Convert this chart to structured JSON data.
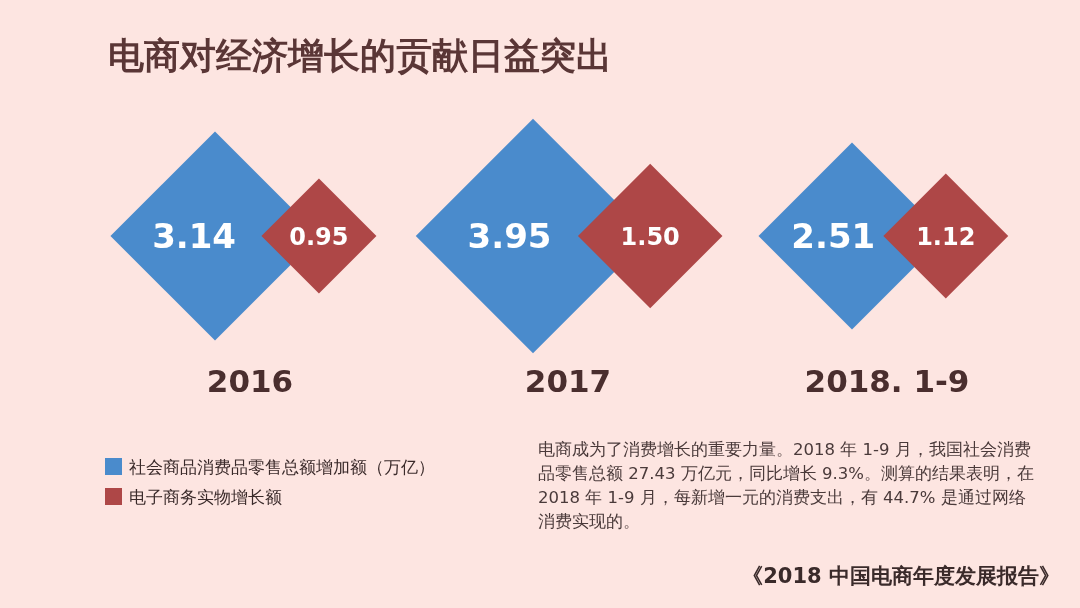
{
  "chart_data": {
    "type": "other",
    "title": "电商对经济增长的贡献日益突出",
    "categories": [
      "2016",
      "2017",
      "2018. 1-9"
    ],
    "series": [
      {
        "name": "社会商品消费品零售总额增加额（万亿）",
        "color": "#4a8bcc",
        "values": [
          3.14,
          3.95,
          2.51
        ],
        "value_labels": [
          "3.14",
          "3.95",
          "2.51"
        ]
      },
      {
        "name": "电子商务实物增长额",
        "color": "#ae4747",
        "values": [
          0.95,
          1.5,
          1.12
        ],
        "value_labels": [
          "0.95",
          "1.50",
          "1.12"
        ]
      }
    ],
    "legend": "bottom left",
    "annotations": [
      "电商成为了消费增长的重要力量。2018 年 1-9 月，我国社会消费品零售总额 27.43 万亿元，同比增长 9.3%。测算的结果表明，在 2018 年 1-9 月，每新增一元的消费支出，有 44.7% 是通过网络消费实现的。",
      "《2018 中国电商年度发展报告》"
    ]
  }
}
